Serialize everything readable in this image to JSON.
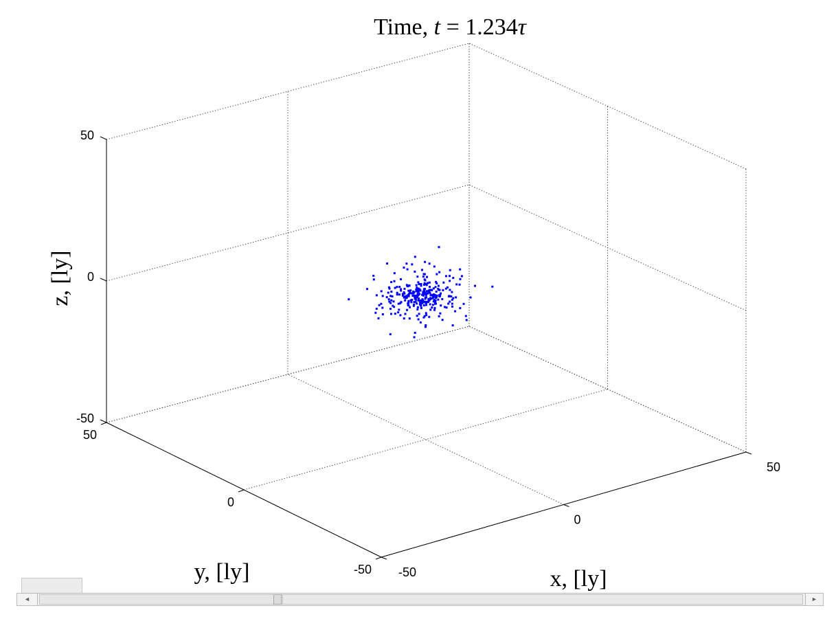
{
  "title": {
    "prefix": "Time, ",
    "var": "t",
    "eq": " = 1.234",
    "unit": "τ"
  },
  "chart_data": {
    "type": "scatter",
    "projection": "3d",
    "title": "Time, t = 1.234τ",
    "xlabel": "x, [ly]",
    "ylabel": "y, [ly]",
    "zlabel": "z, [ly]",
    "xlim": [
      -50,
      50
    ],
    "ylim": [
      -50,
      50
    ],
    "zlim": [
      -50,
      50
    ],
    "xticks": [
      "-50",
      "0",
      "50"
    ],
    "yticks": [
      "-50",
      "0",
      "50"
    ],
    "zticks": [
      "-50",
      "0",
      "50"
    ],
    "grid": true,
    "marker_color": "#0000ff",
    "series": [
      {
        "points": []
      }
    ]
  },
  "colors": {
    "marker": "#0000ff",
    "axis": "#000000",
    "grid": "#000000"
  },
  "ui": {
    "scroll_left_icon": "arrow-left-icon",
    "scroll_right_icon": "arrow-right-icon",
    "scroll_left_glyph": "◄",
    "scroll_right_glyph": "►"
  }
}
